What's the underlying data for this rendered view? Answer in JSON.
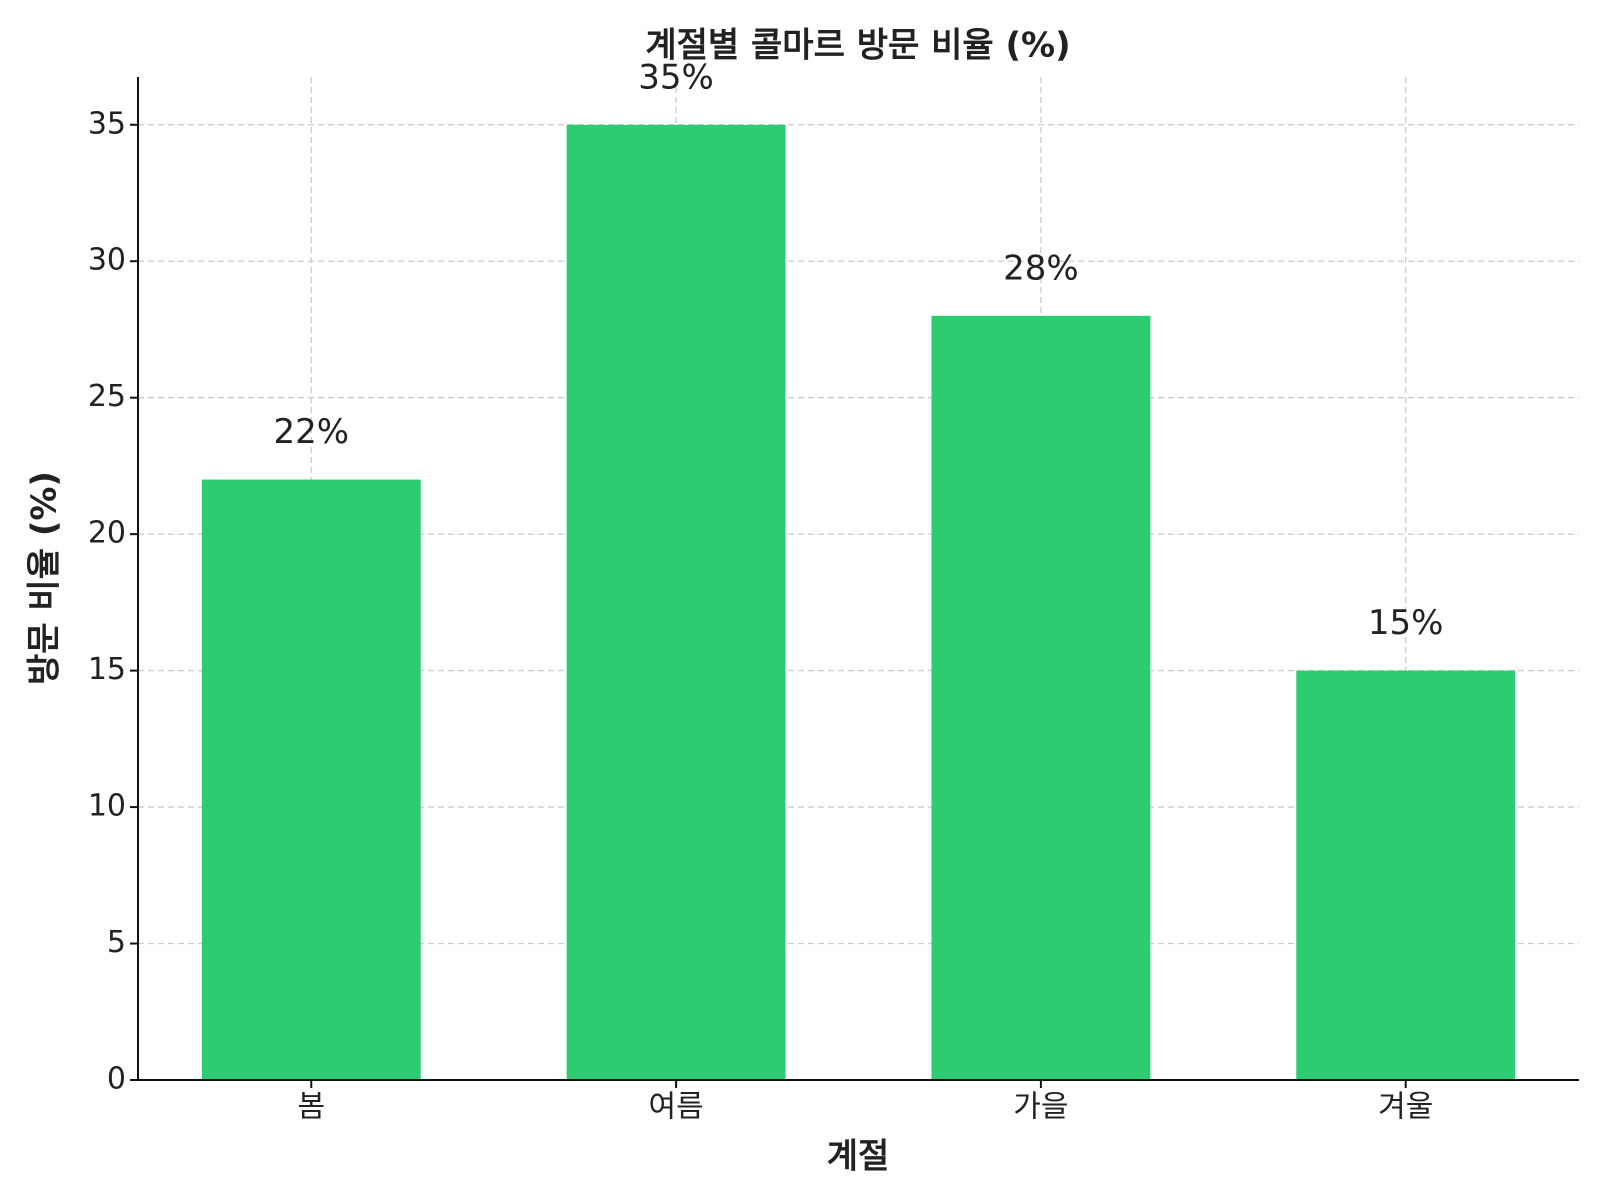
{
  "chart_data": {
    "type": "bar",
    "title": "계절별 콜마르 방문 비율 (%)",
    "x_label": "계절",
    "y_label": "방문 비율 (%)",
    "categories": [
      "봄",
      "여름",
      "가을",
      "겨울"
    ],
    "values": [
      22,
      35,
      28,
      15
    ],
    "value_labels": [
      "22%",
      "35%",
      "28%",
      "15%"
    ],
    "color": "#2ecc71",
    "ylim": [
      0,
      36.75
    ],
    "yticks": [
      0,
      5,
      10,
      15,
      20,
      25,
      30,
      35
    ],
    "grid": true
  }
}
